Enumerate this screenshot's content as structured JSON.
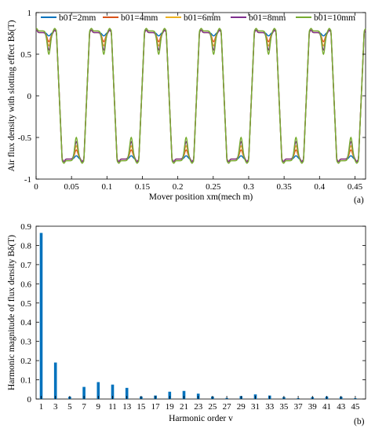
{
  "colors": {
    "b01_2mm": "#0072BD",
    "b01_4mm": "#D95319",
    "b01_6mm": "#EDB120",
    "b01_8mm": "#7E2F8E",
    "b01_10mm": "#77AC30",
    "bar": "#0072BD"
  },
  "chart_data": [
    {
      "type": "line",
      "panel_label": "(a)",
      "xlabel": "Mover position xm(mech m)",
      "ylabel": "Air flux density with slotting effect Bδ(T)",
      "xlim": [
        0,
        0.465
      ],
      "ylim": [
        -1,
        1
      ],
      "xticks": [
        "0",
        "0.05",
        "0.1",
        "0.15",
        "0.2",
        "0.25",
        "0.3",
        "0.35",
        "0.4",
        "0.45"
      ],
      "yticks": [
        "-1",
        "-0.5",
        "0",
        "0.5",
        "1"
      ],
      "legend_position": "top",
      "period": 0.0775,
      "series": [
        {
          "name": "b01=2mm",
          "plateau": 0.76,
          "dip": 0.72
        },
        {
          "name": "b01=4mm",
          "plateau": 0.76,
          "dip": 0.65
        },
        {
          "name": "b01=6mm",
          "plateau": 0.76,
          "dip": 0.6
        },
        {
          "name": "b01=8mm",
          "plateau": 0.76,
          "dip": 0.55
        },
        {
          "name": "b01=10mm",
          "plateau": 0.78,
          "dip": 0.5
        }
      ]
    },
    {
      "type": "bar",
      "panel_label": "(b)",
      "xlabel": "Harmonic order v",
      "ylabel": "Harmonic magnitude of flux density Bδ(T)",
      "ylim": [
        0,
        0.9
      ],
      "yticks": [
        "0",
        "0.1",
        "0.2",
        "0.3",
        "0.4",
        "0.5",
        "0.6",
        "0.7",
        "0.8",
        "0.9"
      ],
      "categories": [
        "1",
        "3",
        "5",
        "7",
        "9",
        "11",
        "13",
        "15",
        "17",
        "19",
        "21",
        "23",
        "25",
        "27",
        "29",
        "31",
        "33",
        "35",
        "37",
        "39",
        "41",
        "43",
        "45"
      ],
      "values": [
        0.865,
        0.19,
        0.012,
        0.063,
        0.088,
        0.075,
        0.058,
        0.013,
        0.018,
        0.038,
        0.042,
        0.028,
        0.013,
        0.005,
        0.015,
        0.024,
        0.018,
        0.01,
        0.004,
        0.01,
        0.013,
        0.012,
        0.004
      ]
    }
  ]
}
